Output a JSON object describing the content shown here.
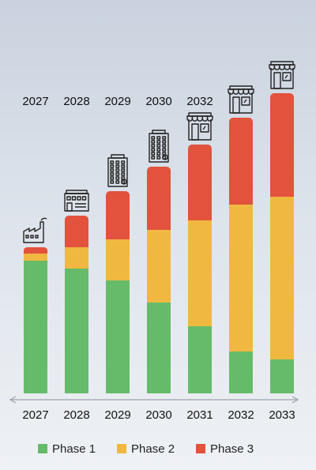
{
  "chart_data": {
    "type": "bar",
    "stacked": true,
    "categories": [
      "2027",
      "2028",
      "2029",
      "2030",
      "2031",
      "2032",
      "2033"
    ],
    "top_labels": [
      "2027",
      "2028",
      "2029",
      "2030",
      "2032"
    ],
    "series": [
      {
        "name": "Phase 1",
        "color": "#66bb6a",
        "values": [
          168,
          158,
          143,
          115,
          85,
          53,
          43
        ]
      },
      {
        "name": "Phase 2",
        "color": "#f0b841",
        "values": [
          8,
          26,
          51,
          91,
          133,
          185,
          205
        ]
      },
      {
        "name": "Phase 3",
        "color": "#e2523d",
        "values": [
          8,
          40,
          61,
          80,
          96,
          110,
          131
        ]
      }
    ],
    "ylim": [
      0,
      400
    ],
    "icons": [
      "factory-icon",
      "office-building-icon",
      "tower-building-icon",
      "tower-building-icon",
      "storefront-icon",
      "storefront-icon",
      "storefront-icon"
    ],
    "legend_position": "bottom",
    "axis": "double-arrow"
  }
}
